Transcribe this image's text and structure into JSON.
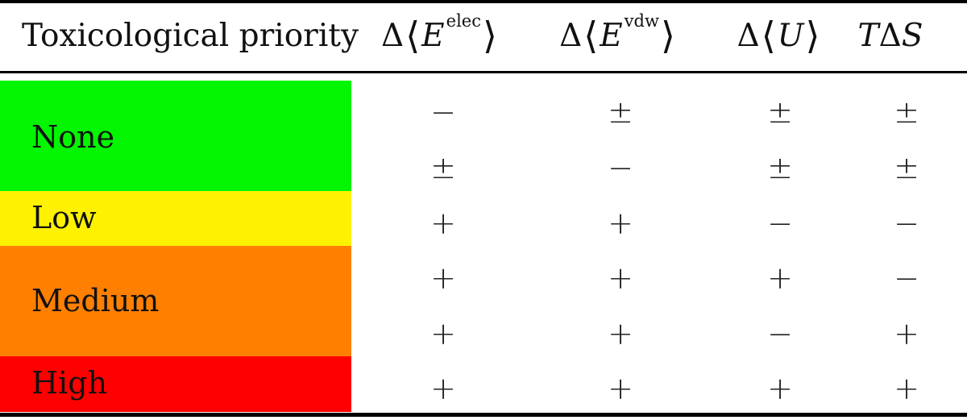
{
  "table": {
    "headers": {
      "priority": "Toxicological priority",
      "delta": "Δ",
      "E": "E",
      "elec": "elec",
      "vdw": "vdw",
      "U": "U",
      "T": "T",
      "S": "S",
      "left_angle": "⟨",
      "right_angle": "⟩"
    },
    "priorities": [
      {
        "label": "None",
        "color": "#04f502"
      },
      {
        "label": "Low",
        "color": "#fff200"
      },
      {
        "label": "Medium",
        "color": "#ff7f00"
      },
      {
        "label": "High",
        "color": "#ff0000"
      }
    ],
    "rows": [
      {
        "priority": "None",
        "signs": [
          "−",
          "±",
          "±",
          "±"
        ]
      },
      {
        "priority": "None",
        "signs": [
          "±",
          "−",
          "±",
          "±"
        ]
      },
      {
        "priority": "Low",
        "signs": [
          "+",
          "+",
          "−",
          "−"
        ]
      },
      {
        "priority": "Medium",
        "signs": [
          "+",
          "+",
          "+",
          "−"
        ]
      },
      {
        "priority": "Medium",
        "signs": [
          "+",
          "+",
          "−",
          "+"
        ]
      },
      {
        "priority": "High",
        "signs": [
          "+",
          "+",
          "+",
          "+"
        ]
      }
    ]
  }
}
